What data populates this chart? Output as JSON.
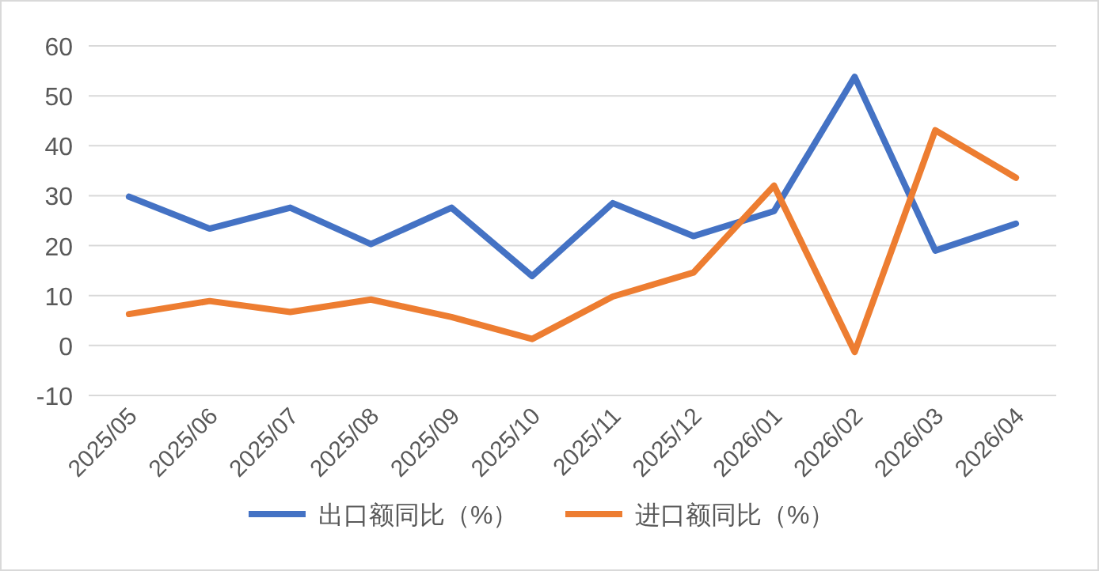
{
  "chart_data": {
    "type": "line",
    "categories": [
      "2025/05",
      "2025/06",
      "2025/07",
      "2025/08",
      "2025/09",
      "2025/10",
      "2025/11",
      "2025/12",
      "2026/01",
      "2026/02",
      "2026/03",
      "2026/04"
    ],
    "series": [
      {
        "name": "出口额同比（%）",
        "color": "#4472c4",
        "values": [
          29.8,
          23.4,
          27.6,
          20.3,
          27.6,
          13.9,
          28.5,
          21.9,
          26.9,
          53.8,
          19.0,
          24.4
        ]
      },
      {
        "name": "进口额同比（%）",
        "color": "#ed7d31",
        "values": [
          6.3,
          8.9,
          6.7,
          9.2,
          5.7,
          1.3,
          9.8,
          14.6,
          32.0,
          -1.3,
          43.1,
          33.6
        ]
      }
    ],
    "ylim": [
      -10,
      60
    ],
    "yticks": [
      -10,
      0,
      10,
      20,
      30,
      40,
      50,
      60
    ],
    "grid": "y",
    "legend": "bottom",
    "marker": "none",
    "line_style": "solid"
  }
}
